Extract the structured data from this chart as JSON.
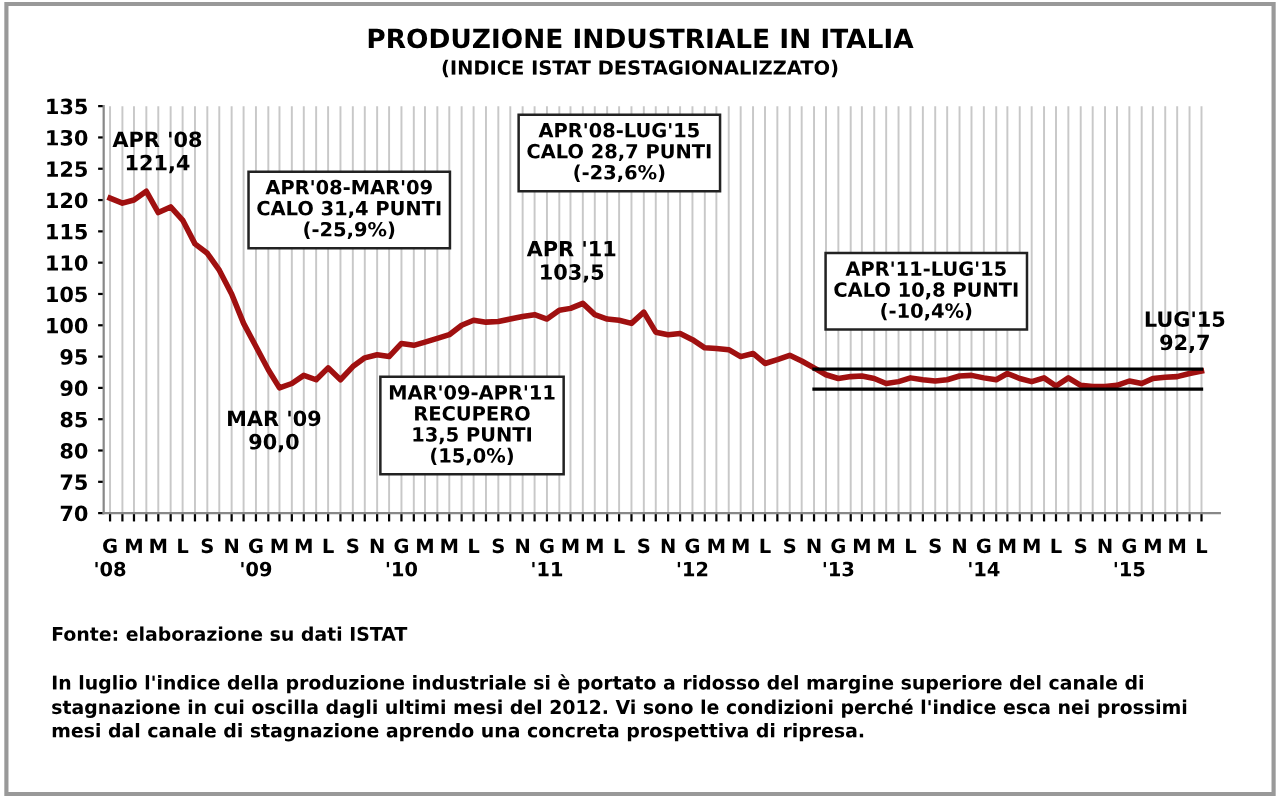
{
  "chart_data": {
    "type": "line",
    "title": "PRODUZIONE INDUSTRIALE IN ITALIA",
    "subtitle": "(INDICE ISTAT DESTAGIONALIZZATO)",
    "x": [
      "2008-01",
      "2008-02",
      "2008-03",
      "2008-04",
      "2008-05",
      "2008-06",
      "2008-07",
      "2008-08",
      "2008-09",
      "2008-10",
      "2008-11",
      "2008-12",
      "2009-01",
      "2009-02",
      "2009-03",
      "2009-04",
      "2009-05",
      "2009-06",
      "2009-07",
      "2009-08",
      "2009-09",
      "2009-10",
      "2009-11",
      "2009-12",
      "2010-01",
      "2010-02",
      "2010-03",
      "2010-04",
      "2010-05",
      "2010-06",
      "2010-07",
      "2010-08",
      "2010-09",
      "2010-10",
      "2010-11",
      "2010-12",
      "2011-01",
      "2011-02",
      "2011-03",
      "2011-04",
      "2011-05",
      "2011-06",
      "2011-07",
      "2011-08",
      "2011-09",
      "2011-10",
      "2011-11",
      "2011-12",
      "2012-01",
      "2012-02",
      "2012-03",
      "2012-04",
      "2012-05",
      "2012-06",
      "2012-07",
      "2012-08",
      "2012-09",
      "2012-10",
      "2012-11",
      "2012-12",
      "2013-01",
      "2013-02",
      "2013-03",
      "2013-04",
      "2013-05",
      "2013-06",
      "2013-07",
      "2013-08",
      "2013-09",
      "2013-10",
      "2013-11",
      "2013-12",
      "2014-01",
      "2014-02",
      "2014-03",
      "2014-04",
      "2014-05",
      "2014-06",
      "2014-07",
      "2014-08",
      "2014-09",
      "2014-10",
      "2014-11",
      "2014-12",
      "2015-01",
      "2015-02",
      "2015-03",
      "2015-04",
      "2015-05",
      "2015-06",
      "2015-07"
    ],
    "series": [
      {
        "color": "#a01010",
        "values": [
          120.3,
          119.5,
          120.0,
          121.4,
          118.0,
          118.9,
          116.8,
          113.0,
          111.5,
          108.8,
          105.0,
          100.3,
          96.6,
          92.9,
          90.0,
          90.7,
          92.0,
          91.3,
          93.2,
          91.3,
          93.4,
          94.8,
          95.3,
          95.0,
          97.1,
          96.8,
          97.3,
          97.9,
          98.5,
          100.0,
          100.8,
          100.5,
          100.6,
          101.0,
          101.4,
          101.7,
          101.0,
          102.4,
          102.7,
          103.5,
          101.7,
          101.0,
          100.8,
          100.3,
          102.1,
          98.9,
          98.5,
          98.7,
          97.7,
          96.4,
          96.3,
          96.1,
          95.0,
          95.5,
          93.9,
          94.5,
          95.2,
          94.3,
          93.2,
          92.1,
          91.5,
          91.8,
          91.9,
          91.5,
          90.7,
          91.0,
          91.6,
          91.3,
          91.1,
          91.3,
          91.9,
          92.0,
          91.6,
          91.3,
          92.3,
          91.5,
          91.0,
          91.6,
          90.3,
          91.6,
          90.4,
          90.2,
          90.2,
          90.4,
          91.1,
          90.7,
          91.5,
          91.7,
          91.8,
          92.3,
          92.7
        ]
      },
      {
        "type": "line",
        "color": "#000000",
        "x": [
          "2012-11",
          "2015-07"
        ],
        "values": [
          93.0,
          93.0
        ]
      },
      {
        "type": "line",
        "color": "#000000",
        "x": [
          "2012-11",
          "2015-07"
        ],
        "values": [
          89.8,
          89.8
        ]
      }
    ],
    "xlim": [
      "2007-12-16",
      "2015-08-16"
    ],
    "xticks": [
      {
        "value": "2008-01",
        "label": "G\n'08"
      },
      {
        "value": "2008-02",
        "label": null
      },
      {
        "value": "2008-03",
        "label": "M"
      },
      {
        "value": "2008-04",
        "label": null
      },
      {
        "value": "2008-05",
        "label": "M"
      },
      {
        "value": "2008-06",
        "label": null
      },
      {
        "value": "2008-07",
        "label": "L"
      },
      {
        "value": "2008-08",
        "label": null
      },
      {
        "value": "2008-09",
        "label": "S"
      },
      {
        "value": "2008-10",
        "label": null
      },
      {
        "value": "2008-11",
        "label": "N"
      },
      {
        "value": "2008-12",
        "label": null
      },
      {
        "value": "2009-01",
        "label": "G\n'09"
      },
      {
        "value": "2009-02",
        "label": null
      },
      {
        "value": "2009-03",
        "label": "M"
      },
      {
        "value": "2009-04",
        "label": null
      },
      {
        "value": "2009-05",
        "label": "M"
      },
      {
        "value": "2009-06",
        "label": null
      },
      {
        "value": "2009-07",
        "label": "L"
      },
      {
        "value": "2009-08",
        "label": null
      },
      {
        "value": "2009-09",
        "label": "S"
      },
      {
        "value": "2009-10",
        "label": null
      },
      {
        "value": "2009-11",
        "label": "N"
      },
      {
        "value": "2009-12",
        "label": null
      },
      {
        "value": "2010-01",
        "label": "G\n'10"
      },
      {
        "value": "2010-02",
        "label": null
      },
      {
        "value": "2010-03",
        "label": "M"
      },
      {
        "value": "2010-04",
        "label": null
      },
      {
        "value": "2010-05",
        "label": "M"
      },
      {
        "value": "2010-06",
        "label": null
      },
      {
        "value": "2010-07",
        "label": "L"
      },
      {
        "value": "2010-08",
        "label": null
      },
      {
        "value": "2010-09",
        "label": "S"
      },
      {
        "value": "2010-10",
        "label": null
      },
      {
        "value": "2010-11",
        "label": "N"
      },
      {
        "value": "2010-12",
        "label": null
      },
      {
        "value": "2011-01",
        "label": "G\n'11"
      },
      {
        "value": "2011-02",
        "label": null
      },
      {
        "value": "2011-03",
        "label": "M"
      },
      {
        "value": "2011-04",
        "label": null
      },
      {
        "value": "2011-05",
        "label": "M"
      },
      {
        "value": "2011-06",
        "label": null
      },
      {
        "value": "2011-07",
        "label": "L"
      },
      {
        "value": "2011-08",
        "label": null
      },
      {
        "value": "2011-09",
        "label": "S"
      },
      {
        "value": "2011-10",
        "label": null
      },
      {
        "value": "2011-11",
        "label": "N"
      },
      {
        "value": "2011-12",
        "label": null
      },
      {
        "value": "2012-01",
        "label": "G\n'12"
      },
      {
        "value": "2012-02",
        "label": null
      },
      {
        "value": "2012-03",
        "label": "M"
      },
      {
        "value": "2012-04",
        "label": null
      },
      {
        "value": "2012-05",
        "label": "M"
      },
      {
        "value": "2012-06",
        "label": null
      },
      {
        "value": "2012-07",
        "label": "L"
      },
      {
        "value": "2012-08",
        "label": null
      },
      {
        "value": "2012-09",
        "label": "S"
      },
      {
        "value": "2012-10",
        "label": null
      },
      {
        "value": "2012-11",
        "label": "N"
      },
      {
        "value": "2012-12",
        "label": null
      },
      {
        "value": "2013-01",
        "label": "G\n'13"
      },
      {
        "value": "2013-02",
        "label": null
      },
      {
        "value": "2013-03",
        "label": "M"
      },
      {
        "value": "2013-04",
        "label": null
      },
      {
        "value": "2013-05",
        "label": "M"
      },
      {
        "value": "2013-06",
        "label": null
      },
      {
        "value": "2013-07",
        "label": "L"
      },
      {
        "value": "2013-08",
        "label": null
      },
      {
        "value": "2013-09",
        "label": "S"
      },
      {
        "value": "2013-10",
        "label": null
      },
      {
        "value": "2013-11",
        "label": "N"
      },
      {
        "value": "2013-12",
        "label": null
      },
      {
        "value": "2014-01",
        "label": "G\n'14"
      },
      {
        "value": "2014-02",
        "label": null
      },
      {
        "value": "2014-03",
        "label": "M"
      },
      {
        "value": "2014-04",
        "label": null
      },
      {
        "value": "2014-05",
        "label": "M"
      },
      {
        "value": "2014-06",
        "label": null
      },
      {
        "value": "2014-07",
        "label": "L"
      },
      {
        "value": "2014-08",
        "label": null
      },
      {
        "value": "2014-09",
        "label": "S"
      },
      {
        "value": "2014-10",
        "label": null
      },
      {
        "value": "2014-11",
        "label": "N"
      },
      {
        "value": "2014-12",
        "label": null
      },
      {
        "value": "2015-01",
        "label": "G\n'15"
      },
      {
        "value": "2015-02",
        "label": null
      },
      {
        "value": "2015-03",
        "label": "M"
      },
      {
        "value": "2015-04",
        "label": null
      },
      {
        "value": "2015-05",
        "label": "M"
      },
      {
        "value": "2015-06",
        "label": null
      },
      {
        "value": "2015-07",
        "label": "L"
      }
    ],
    "ylim": [
      70,
      135
    ],
    "yticks": [
      70,
      75,
      80,
      85,
      90,
      95,
      100,
      105,
      110,
      115,
      120,
      125,
      130,
      135
    ],
    "grid": "x",
    "legend": false,
    "marker": "none",
    "line_style": "solid",
    "annotations": [
      {
        "text": "APR '08\n121,4",
        "x": "2008-04",
        "y": 121.4
      },
      {
        "text": "MAR '09\n90,0",
        "x": "2009-03",
        "y": 90.0
      },
      {
        "text": "APR '11\n103,5",
        "x": "2011-04",
        "y": 103.5
      },
      {
        "text": "LUG'15\n92,7",
        "x": "2015-07",
        "y": 92.7
      },
      "APR'08-MAR'09\nCALO 31,4 PUNTI\n(-25,9%)",
      "APR'08-LUG'15\nCALO 28,7 PUNTI\n(-23,6%)",
      "MAR'09-APR'11\nRECUPERO\n13,5 PUNTI\n(15,0%)",
      "APR'11-LUG'15\nCALO 10,8 PUNTI\n(-10,4%)",
      "Fonte: elaborazione su dati ISTAT",
      "In luglio l'indice della produzione industriale si è portato a ridosso del margine superiore del canale di\nstagnazione in cui oscilla dagli ultimi mesi del 2012. Vi sono le condizioni perché l'indice esca nei prossimi\nmesi dal canale di stagnazione aprendo una concreta prospettiva di ripresa."
    ]
  }
}
